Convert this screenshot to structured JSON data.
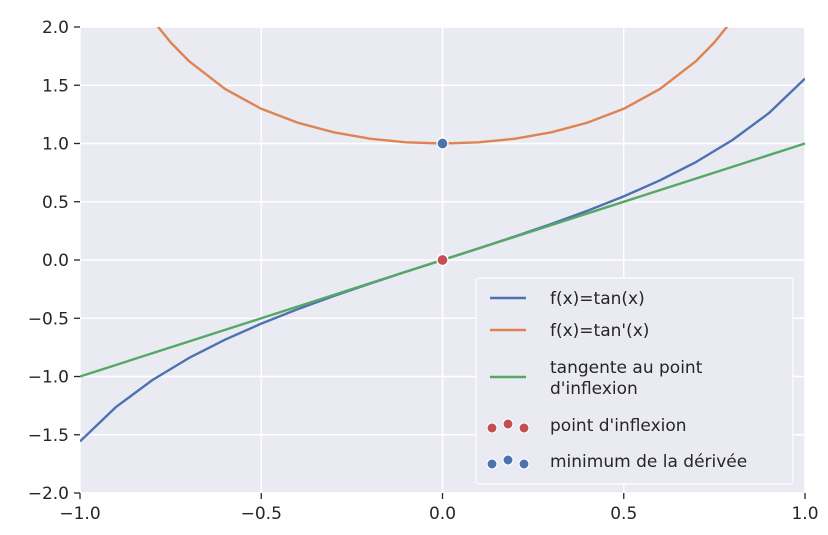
{
  "chart_data": {
    "type": "line",
    "title": "",
    "xlabel": "",
    "ylabel": "",
    "xlim": [
      -1.0,
      1.0
    ],
    "ylim": [
      -2.0,
      2.0
    ],
    "grid": true,
    "legend_position": "bottom-right",
    "x_ticks": [
      "−1.0",
      "−0.5",
      "0.0",
      "0.5",
      "1.0"
    ],
    "x_tick_values": [
      -1.0,
      -0.5,
      0.0,
      0.5,
      1.0
    ],
    "y_ticks": [
      "2.0",
      "1.5",
      "1.0",
      "0.5",
      "0.0",
      "−0.5",
      "−1.0",
      "−1.5",
      "−2.0"
    ],
    "y_tick_values": [
      2.0,
      1.5,
      1.0,
      0.5,
      0.0,
      -0.5,
      -1.0,
      -1.5,
      -2.0
    ],
    "series": [
      {
        "name": "f(x)=tan(x)",
        "color": "#4c72b0",
        "x": [
          -1.0,
          -0.9,
          -0.8,
          -0.7,
          -0.6,
          -0.5,
          -0.4,
          -0.3,
          -0.2,
          -0.1,
          0.0,
          0.1,
          0.2,
          0.3,
          0.4,
          0.5,
          0.6,
          0.7,
          0.8,
          0.9,
          1.0
        ],
        "y": [
          -1.557,
          -1.26,
          -1.03,
          -0.842,
          -0.684,
          -0.546,
          -0.423,
          -0.309,
          -0.203,
          -0.1,
          0.0,
          0.1,
          0.203,
          0.309,
          0.423,
          0.546,
          0.684,
          0.842,
          1.03,
          1.26,
          1.557
        ]
      },
      {
        "name": "f(x)=tan'(x)",
        "color": "#dd8452",
        "x": [
          -0.8,
          -0.75,
          -0.7,
          -0.6,
          -0.5,
          -0.4,
          -0.3,
          -0.2,
          -0.1,
          0.0,
          0.1,
          0.2,
          0.3,
          0.4,
          0.5,
          0.6,
          0.7,
          0.75,
          0.8
        ],
        "y": [
          2.061,
          1.868,
          1.709,
          1.468,
          1.298,
          1.179,
          1.096,
          1.041,
          1.01,
          1.0,
          1.01,
          1.041,
          1.096,
          1.179,
          1.298,
          1.468,
          1.709,
          1.868,
          2.061
        ]
      },
      {
        "name": "tangente au point d'inflexion",
        "legend_lines": [
          "tangente au point",
          "d'inflexion"
        ],
        "color": "#55a868",
        "x": [
          -1.0,
          1.0
        ],
        "y": [
          -1.0,
          1.0
        ]
      }
    ],
    "points": [
      {
        "name": "point d'inflexion",
        "color": "#c44e52",
        "x": 0.0,
        "y": 0.0
      },
      {
        "name": "minimum de la dérivée",
        "color": "#4c72b0",
        "x": 0.0,
        "y": 1.0
      }
    ]
  }
}
